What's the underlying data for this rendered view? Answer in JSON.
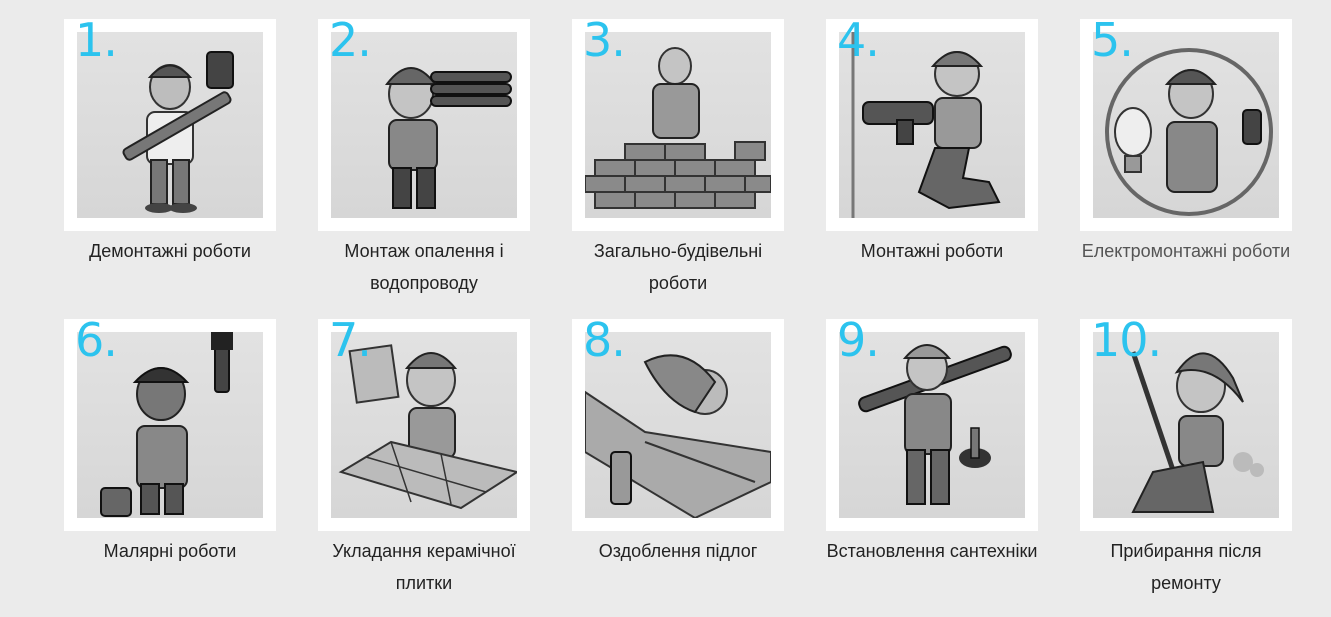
{
  "services": [
    {
      "number": "1.",
      "label": "Демонтажні роботи",
      "icon": "demolition-worker-icon"
    },
    {
      "number": "2.",
      "label": "Монтаж опалення і водопроводу",
      "icon": "pipe-worker-icon"
    },
    {
      "number": "3.",
      "label": "Загально-будівельні роботи",
      "icon": "bricklayer-icon"
    },
    {
      "number": "4.",
      "label": "Монтажні роботи",
      "icon": "drill-worker-icon"
    },
    {
      "number": "5.",
      "label": "Електромонтажні роботи",
      "icon": "electrician-icon"
    },
    {
      "number": "6.",
      "label": "Малярні роботи",
      "icon": "painter-icon"
    },
    {
      "number": "7.",
      "label": "Укладання керамічної плитки",
      "icon": "tiler-icon"
    },
    {
      "number": "8.",
      "label": "Оздоблення підлог",
      "icon": "floor-worker-icon"
    },
    {
      "number": "9.",
      "label": "Встановлення сантехніки",
      "icon": "plumber-icon"
    },
    {
      "number": "10.",
      "label": "Прибирання після ремонту",
      "icon": "cleaner-icon"
    }
  ],
  "colors": {
    "page_background": "#ebebeb",
    "number_accent": "#2cc3ee",
    "frame": "#ffffff",
    "caption_text": "#222222"
  }
}
